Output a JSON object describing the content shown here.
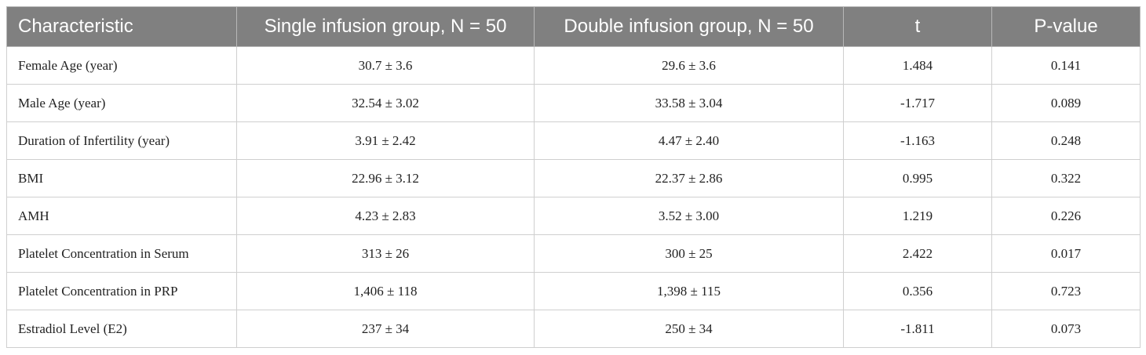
{
  "table": {
    "header": [
      "Characteristic",
      "Single infusion group, N = 50",
      "Double infusion group, N = 50",
      "t",
      "P-value"
    ],
    "rows": [
      [
        "Female Age (year)",
        "30.7 ± 3.6",
        "29.6 ± 3.6",
        "1.484",
        "0.141"
      ],
      [
        "Male Age (year)",
        "32.54 ± 3.02",
        "33.58 ± 3.04",
        "-1.717",
        "0.089"
      ],
      [
        "Duration of Infertility (year)",
        "3.91 ± 2.42",
        "4.47 ± 2.40",
        "-1.163",
        "0.248"
      ],
      [
        "BMI",
        "22.96 ± 3.12",
        "22.37 ± 2.86",
        "0.995",
        "0.322"
      ],
      [
        "AMH",
        "4.23 ± 2.83",
        "3.52 ± 3.00",
        "1.219",
        "0.226"
      ],
      [
        "Platelet Concentration in Serum",
        "313 ± 26",
        "300 ± 25",
        "2.422",
        "0.017"
      ],
      [
        "Platelet Concentration in PRP",
        "1,406 ± 118",
        "1,398 ± 115",
        "0.356",
        "0.723"
      ],
      [
        "Estradiol Level (E2)",
        "237 ± 34",
        "250 ± 34",
        "-1.811",
        "0.073"
      ]
    ]
  }
}
